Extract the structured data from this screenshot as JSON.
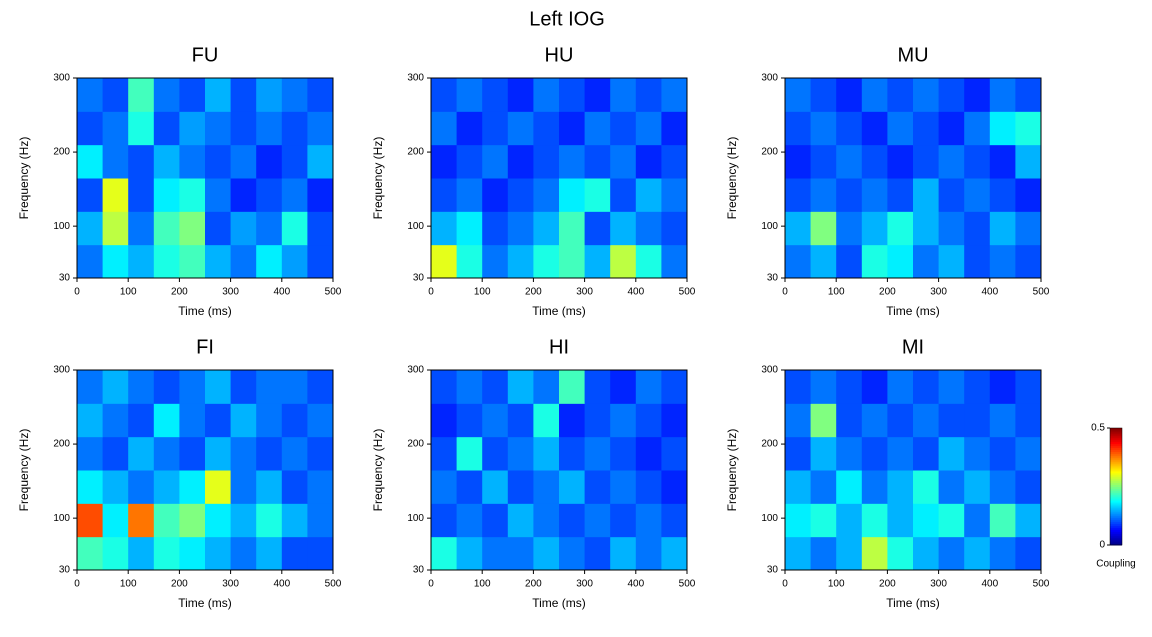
{
  "title": "Left IOG",
  "colorbar": {
    "label": "Coupling",
    "lim": [
      0,
      0.5
    ],
    "ticks": [
      0,
      0.5
    ],
    "colormap": "jet"
  },
  "chart_data": [
    {
      "type": "heatmap",
      "title": "FU",
      "xlabel": "Time (ms)",
      "ylabel": "Frequency (Hz)",
      "xlim": [
        0,
        500
      ],
      "ylim": [
        30,
        300
      ],
      "xticks": [
        0,
        100,
        200,
        300,
        400,
        500
      ],
      "yticks": [
        30,
        100,
        200,
        300
      ],
      "z": [
        [
          0.12,
          0.18,
          0.15,
          0.2,
          0.22,
          0.15,
          0.12,
          0.18,
          0.14,
          0.1
        ],
        [
          0.15,
          0.28,
          0.12,
          0.22,
          0.25,
          0.1,
          0.14,
          0.12,
          0.2,
          0.1
        ],
        [
          0.1,
          0.3,
          0.1,
          0.18,
          0.2,
          0.12,
          0.08,
          0.1,
          0.12,
          0.08
        ],
        [
          0.18,
          0.12,
          0.1,
          0.15,
          0.12,
          0.1,
          0.12,
          0.08,
          0.1,
          0.15
        ],
        [
          0.1,
          0.12,
          0.2,
          0.1,
          0.14,
          0.12,
          0.1,
          0.12,
          0.1,
          0.12
        ],
        [
          0.12,
          0.1,
          0.22,
          0.12,
          0.1,
          0.15,
          0.1,
          0.14,
          0.12,
          0.1
        ]
      ]
    },
    {
      "type": "heatmap",
      "title": "HU",
      "xlabel": "Time (ms)",
      "ylabel": "Frequency (Hz)",
      "xlim": [
        0,
        500
      ],
      "ylim": [
        30,
        300
      ],
      "xticks": [
        0,
        100,
        200,
        300,
        400,
        500
      ],
      "yticks": [
        30,
        100,
        200,
        300
      ],
      "z": [
        [
          0.3,
          0.2,
          0.12,
          0.15,
          0.2,
          0.22,
          0.15,
          0.28,
          0.2,
          0.12
        ],
        [
          0.15,
          0.18,
          0.1,
          0.12,
          0.15,
          0.22,
          0.1,
          0.15,
          0.12,
          0.1
        ],
        [
          0.1,
          0.12,
          0.08,
          0.1,
          0.12,
          0.18,
          0.2,
          0.1,
          0.15,
          0.12
        ],
        [
          0.08,
          0.1,
          0.12,
          0.08,
          0.1,
          0.12,
          0.1,
          0.12,
          0.08,
          0.1
        ],
        [
          0.12,
          0.08,
          0.1,
          0.12,
          0.1,
          0.08,
          0.12,
          0.1,
          0.12,
          0.08
        ],
        [
          0.1,
          0.12,
          0.1,
          0.08,
          0.12,
          0.1,
          0.08,
          0.12,
          0.1,
          0.12
        ]
      ]
    },
    {
      "type": "heatmap",
      "title": "MU",
      "xlabel": "Time (ms)",
      "ylabel": "Frequency (Hz)",
      "xlim": [
        0,
        500
      ],
      "ylim": [
        30,
        300
      ],
      "xticks": [
        0,
        100,
        200,
        300,
        400,
        500
      ],
      "yticks": [
        30,
        100,
        200,
        300
      ],
      "z": [
        [
          0.12,
          0.15,
          0.1,
          0.2,
          0.18,
          0.12,
          0.15,
          0.1,
          0.12,
          0.1
        ],
        [
          0.15,
          0.25,
          0.12,
          0.15,
          0.2,
          0.15,
          0.12,
          0.1,
          0.15,
          0.12
        ],
        [
          0.1,
          0.12,
          0.1,
          0.12,
          0.1,
          0.15,
          0.1,
          0.12,
          0.1,
          0.08
        ],
        [
          0.08,
          0.1,
          0.12,
          0.1,
          0.08,
          0.1,
          0.12,
          0.1,
          0.08,
          0.15
        ],
        [
          0.1,
          0.12,
          0.1,
          0.08,
          0.12,
          0.1,
          0.08,
          0.12,
          0.18,
          0.2
        ],
        [
          0.12,
          0.1,
          0.08,
          0.12,
          0.1,
          0.12,
          0.1,
          0.08,
          0.12,
          0.1
        ]
      ]
    },
    {
      "type": "heatmap",
      "title": "FI",
      "xlabel": "Time (ms)",
      "ylabel": "Frequency (Hz)",
      "xlim": [
        0,
        500
      ],
      "ylim": [
        30,
        300
      ],
      "xticks": [
        0,
        100,
        200,
        300,
        400,
        500
      ],
      "yticks": [
        30,
        100,
        200,
        300
      ],
      "z": [
        [
          0.22,
          0.2,
          0.15,
          0.2,
          0.18,
          0.15,
          0.12,
          0.15,
          0.1,
          0.1
        ],
        [
          0.4,
          0.18,
          0.38,
          0.22,
          0.25,
          0.18,
          0.15,
          0.2,
          0.15,
          0.12
        ],
        [
          0.18,
          0.15,
          0.12,
          0.15,
          0.18,
          0.3,
          0.12,
          0.15,
          0.1,
          0.12
        ],
        [
          0.12,
          0.1,
          0.15,
          0.12,
          0.1,
          0.15,
          0.12,
          0.1,
          0.12,
          0.1
        ],
        [
          0.15,
          0.12,
          0.1,
          0.18,
          0.12,
          0.1,
          0.15,
          0.12,
          0.1,
          0.12
        ],
        [
          0.12,
          0.15,
          0.12,
          0.1,
          0.12,
          0.15,
          0.1,
          0.12,
          0.12,
          0.1
        ]
      ]
    },
    {
      "type": "heatmap",
      "title": "HI",
      "xlabel": "Time (ms)",
      "ylabel": "Frequency (Hz)",
      "xlim": [
        0,
        500
      ],
      "ylim": [
        30,
        300
      ],
      "xticks": [
        0,
        100,
        200,
        300,
        400,
        500
      ],
      "yticks": [
        30,
        100,
        200,
        300
      ],
      "z": [
        [
          0.2,
          0.15,
          0.12,
          0.12,
          0.15,
          0.12,
          0.1,
          0.15,
          0.12,
          0.15
        ],
        [
          0.1,
          0.12,
          0.1,
          0.15,
          0.12,
          0.1,
          0.12,
          0.1,
          0.12,
          0.1
        ],
        [
          0.12,
          0.1,
          0.15,
          0.1,
          0.12,
          0.15,
          0.1,
          0.12,
          0.1,
          0.08
        ],
        [
          0.1,
          0.2,
          0.1,
          0.12,
          0.15,
          0.1,
          0.12,
          0.1,
          0.08,
          0.1
        ],
        [
          0.08,
          0.1,
          0.12,
          0.1,
          0.2,
          0.08,
          0.1,
          0.12,
          0.1,
          0.08
        ],
        [
          0.1,
          0.12,
          0.1,
          0.15,
          0.12,
          0.22,
          0.1,
          0.08,
          0.12,
          0.1
        ]
      ]
    },
    {
      "type": "heatmap",
      "title": "MI",
      "xlabel": "Time (ms)",
      "ylabel": "Frequency (Hz)",
      "xlim": [
        0,
        500
      ],
      "ylim": [
        30,
        300
      ],
      "xticks": [
        0,
        100,
        200,
        300,
        400,
        500
      ],
      "yticks": [
        30,
        100,
        200,
        300
      ],
      "z": [
        [
          0.15,
          0.12,
          0.15,
          0.28,
          0.2,
          0.15,
          0.12,
          0.15,
          0.12,
          0.1
        ],
        [
          0.18,
          0.2,
          0.15,
          0.2,
          0.15,
          0.18,
          0.2,
          0.12,
          0.22,
          0.15
        ],
        [
          0.15,
          0.12,
          0.18,
          0.12,
          0.15,
          0.2,
          0.12,
          0.15,
          0.12,
          0.1
        ],
        [
          0.1,
          0.15,
          0.12,
          0.1,
          0.12,
          0.1,
          0.15,
          0.12,
          0.1,
          0.12
        ],
        [
          0.12,
          0.25,
          0.1,
          0.12,
          0.1,
          0.12,
          0.1,
          0.1,
          0.12,
          0.1
        ],
        [
          0.1,
          0.12,
          0.1,
          0.08,
          0.12,
          0.1,
          0.12,
          0.1,
          0.08,
          0.1
        ]
      ]
    }
  ]
}
